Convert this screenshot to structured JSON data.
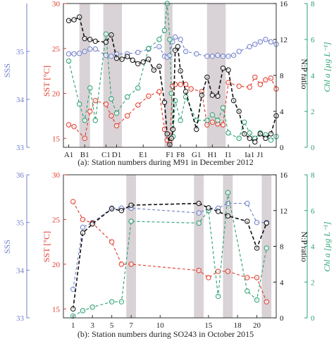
{
  "colors": {
    "sss": "#6f7fc9",
    "sst": "#e03a2a",
    "np": "#111111",
    "chl": "#2aa070",
    "shade": "#d9d2d6",
    "axis": "#333333"
  },
  "chart_data": [
    {
      "type": "line",
      "caption": "(a): Station numbers during M91 in December 2012",
      "x_range": [
        0,
        40
      ],
      "station_labels": [
        {
          "label": "A1",
          "x": 1
        },
        {
          "label": "B1",
          "x": 4
        },
        {
          "label": "C1",
          "x": 8
        },
        {
          "label": "D1",
          "x": 10
        },
        {
          "label": "E1",
          "x": 15
        },
        {
          "label": "F1",
          "x": 20
        },
        {
          "label": "F8",
          "x": 22
        },
        {
          "label": "G1",
          "x": 25
        },
        {
          "label": "H1",
          "x": 28
        },
        {
          "label": "I1",
          "x": 31
        },
        {
          "label": "Ia1",
          "x": 35
        },
        {
          "label": "J1",
          "x": 37
        }
      ],
      "shaded_bands": [
        [
          3,
          5
        ],
        [
          7.5,
          11
        ],
        [
          19,
          20.5
        ],
        [
          27,
          30.5
        ]
      ],
      "axes": {
        "sss": {
          "label": "SSS",
          "range": [
            33,
            36
          ],
          "ticks": [
            33,
            34,
            35
          ]
        },
        "sst": {
          "label": "SST [°C]",
          "range": [
            14,
            30
          ],
          "ticks": [
            15,
            20,
            25,
            30
          ]
        },
        "np": {
          "label": "N:P ratio",
          "range": [
            0,
            16
          ],
          "ticks": [
            0,
            4,
            8,
            12,
            16
          ]
        },
        "chl": {
          "label": "Chl a [µg L⁻¹]",
          "range": [
            0,
            8
          ],
          "ticks": [
            0,
            2,
            4,
            6,
            8
          ]
        }
      },
      "series": [
        {
          "key": "sss",
          "x": [
            1,
            2,
            3,
            4,
            5,
            6,
            8,
            9,
            10,
            12,
            14,
            16,
            18,
            19,
            19.5,
            20,
            20.5,
            21,
            22,
            23,
            25,
            27,
            28,
            29,
            30,
            31,
            32,
            33,
            35,
            36,
            37,
            38,
            39,
            40
          ],
          "values": [
            34.95,
            34.95,
            34.96,
            35.0,
            35.05,
            35.05,
            34.92,
            34.9,
            34.95,
            34.95,
            34.98,
            35.05,
            35.1,
            34.9,
            34.88,
            34.92,
            35.2,
            35.3,
            35.25,
            35.0,
            34.95,
            34.9,
            34.9,
            34.92,
            34.9,
            34.9,
            34.92,
            35.0,
            35.1,
            35.15,
            35.2,
            35.25,
            35.2,
            35.15
          ]
        },
        {
          "key": "sst",
          "x": [
            1,
            2,
            4,
            5,
            6,
            8,
            9,
            10,
            12,
            14,
            16,
            18,
            19,
            19.5,
            20,
            20.5,
            21,
            22,
            23,
            24,
            26,
            27,
            28,
            29,
            30,
            31,
            33,
            35,
            36,
            37,
            38,
            39,
            40
          ],
          "values": [
            16.5,
            16.3,
            15.0,
            18.0,
            19.2,
            18.8,
            17.5,
            16.4,
            17.5,
            18.7,
            19.7,
            20.2,
            16.0,
            14.8,
            14.5,
            20.8,
            21.0,
            21.0,
            21.0,
            20.5,
            20.2,
            16.5,
            16.8,
            16.6,
            16.5,
            21.2,
            20.8,
            20.7,
            21.8,
            21.0,
            21.5,
            21.7,
            20.5
          ]
        },
        {
          "key": "np",
          "x": [
            1,
            2,
            3,
            4,
            5,
            6,
            8,
            9,
            10,
            11,
            12,
            13,
            14,
            15,
            16,
            17,
            18,
            19,
            19.5,
            20,
            20.3,
            20.6,
            21,
            21.5,
            22,
            23,
            25,
            26,
            27,
            28,
            29,
            30,
            31,
            32,
            33,
            34,
            35,
            36,
            37,
            38,
            39,
            40
          ],
          "values": [
            14.1,
            14.2,
            14.5,
            12.1,
            12.0,
            11.8,
            11.7,
            12.5,
            9.9,
            9.8,
            10.1,
            9.7,
            9.3,
            9.5,
            9.8,
            8.6,
            9.0,
            5.0,
            1.5,
            0.3,
            1.0,
            2.0,
            10.8,
            11.2,
            8.5,
            6.2,
            2.0,
            5.8,
            7.8,
            5.8,
            5.7,
            8.8,
            8.6,
            5.2,
            4.0,
            1.5,
            1.0,
            0.6,
            1.5,
            1.0,
            1.5,
            3.5
          ]
        },
        {
          "key": "chl",
          "x": [
            1,
            3,
            4,
            5,
            6,
            8,
            9,
            10,
            12,
            14,
            16,
            18,
            19,
            19.5,
            20,
            20.3,
            20.6,
            21,
            22,
            23,
            25,
            27,
            28,
            29,
            30,
            31,
            33,
            34,
            35,
            36,
            37,
            38,
            39,
            40
          ],
          "values": [
            4.8,
            2.4,
            1.5,
            3.3,
            1.5,
            6.3,
            2.7,
            1.9,
            2.8,
            3.3,
            5.5,
            6.0,
            6.5,
            8.0,
            6.0,
            3.0,
            0.6,
            2.6,
            1.5,
            2.8,
            1.5,
            1.5,
            1.8,
            1.5,
            2.2,
            0.8,
            0.5,
            1.4,
            0.8,
            0.5,
            0.8,
            0.7,
            0.4,
            0.6
          ]
        }
      ]
    },
    {
      "type": "line",
      "caption": "(b): Station numbers during SO243 in October 2015",
      "x_range": [
        0,
        22
      ],
      "station_labels": [
        {
          "label": "1",
          "x": 1
        },
        {
          "label": "3",
          "x": 3
        },
        {
          "label": "5",
          "x": 5
        },
        {
          "label": "7",
          "x": 7
        },
        {
          "label": "10",
          "x": 10
        },
        {
          "label": "15",
          "x": 15
        },
        {
          "label": "18",
          "x": 18
        },
        {
          "label": "20",
          "x": 20
        }
      ],
      "shaded_bands": [
        [
          6.5,
          7.5
        ],
        [
          13.5,
          14.5
        ],
        [
          16.5,
          17.5
        ],
        [
          20.5,
          21.5
        ]
      ],
      "axes": {
        "sss": {
          "label": "SSS",
          "range": [
            33,
            36
          ],
          "ticks": [
            33,
            34,
            35,
            36
          ]
        },
        "sst": {
          "label": "SST [°C]",
          "range": [
            14,
            30
          ],
          "ticks": [
            15,
            20,
            25,
            30
          ]
        },
        "np": {
          "label": "N:P ratio",
          "range": [
            0,
            16
          ],
          "ticks": [
            0,
            4,
            8,
            12,
            16
          ]
        },
        "chl": {
          "label": "Chl a [µg L⁻¹]",
          "range": [
            0,
            8
          ],
          "ticks": [
            0,
            2,
            4,
            6,
            8
          ]
        }
      },
      "series": [
        {
          "key": "sss",
          "x": [
            1,
            2,
            3,
            5,
            6,
            7,
            14,
            15,
            16,
            17,
            19,
            20,
            21
          ],
          "values": [
            33.6,
            34.9,
            35.0,
            35.3,
            35.3,
            35.3,
            35.2,
            35.3,
            35.3,
            35.4,
            35.4,
            35.0,
            35.0
          ]
        },
        {
          "key": "sst",
          "x": [
            1,
            2,
            3,
            5,
            6,
            7,
            14,
            15,
            16,
            17,
            19,
            20,
            21
          ],
          "values": [
            27.0,
            25.0,
            24.6,
            22.5,
            20.0,
            20.0,
            19.3,
            18.5,
            19.2,
            19.2,
            18.5,
            18.5,
            15.8
          ]
        },
        {
          "key": "np",
          "x": [
            1,
            2,
            3,
            5,
            6,
            7,
            14,
            15,
            16,
            17,
            19,
            20,
            21
          ],
          "values": [
            1.0,
            9.5,
            10.5,
            12.2,
            12.0,
            12.6,
            12.8,
            12.3,
            11.9,
            11.4,
            10.8,
            7.8,
            10.6
          ]
        },
        {
          "key": "chl",
          "x": [
            1,
            2,
            3,
            5,
            6,
            7,
            14,
            15,
            16,
            17,
            19,
            20,
            21
          ],
          "values": [
            0.1,
            0.4,
            0.6,
            0.9,
            0.9,
            5.4,
            5.3,
            6.0,
            1.2,
            7.0,
            1.5,
            1.0,
            3.9
          ]
        }
      ]
    }
  ]
}
